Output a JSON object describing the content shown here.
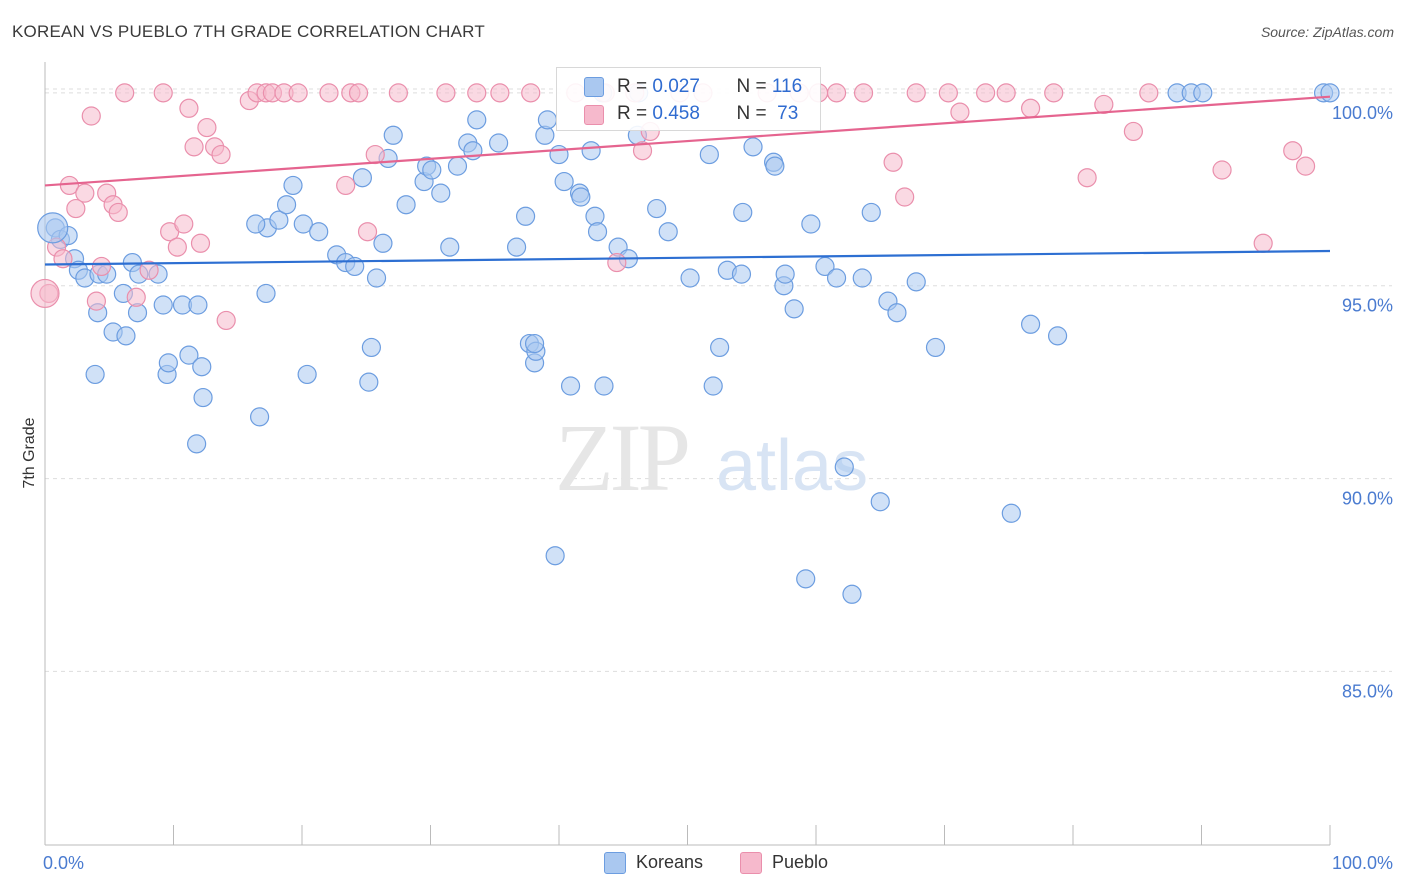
{
  "title": "KOREAN VS PUEBLO 7TH GRADE CORRELATION CHART",
  "source": "Source: ZipAtlas.com",
  "watermark": {
    "zip": "ZIP",
    "atlas": "atlas"
  },
  "colors": {
    "blue_fill": "#aac8f0",
    "blue_stroke": "#6c9de0",
    "blue_line": "#2d6fd2",
    "pink_fill": "#f6b9cc",
    "pink_stroke": "#ea8fac",
    "pink_line": "#e5648f",
    "grid": "#dddddd",
    "tick_label": "#4a7bd0"
  },
  "legend": {
    "rows": [
      {
        "r_label": "R = ",
        "r_value": "0.027",
        "n_label": "N = ",
        "n_value": "116",
        "series": "Koreans"
      },
      {
        "r_label": "R = ",
        "r_value": "0.458",
        "n_label": "N = ",
        "n_value": " 73",
        "series": "Pueblo"
      }
    ]
  },
  "chart_data": {
    "type": "scatter",
    "title": "KOREAN VS PUEBLO 7TH GRADE CORRELATION CHART",
    "xlabel": "",
    "ylabel": "7th Grade",
    "xlim": [
      0,
      100
    ],
    "ylim": [
      80.5,
      100.8
    ],
    "x_tick_labels": [
      "0.0%",
      "100.0%"
    ],
    "y_ticks": [
      85,
      90,
      95,
      100
    ],
    "y_tick_labels": [
      "85.0%",
      "90.0%",
      "95.0%",
      "100.0%"
    ],
    "grid": true,
    "legend_position": "top-center",
    "series": [
      {
        "name": "Koreans",
        "color": "#6c9de0",
        "trend": {
          "x": [
            0,
            100
          ],
          "y": [
            95.55,
            95.9
          ]
        },
        "points": [
          [
            0.8,
            96.5
          ],
          [
            1.2,
            96.2
          ],
          [
            1.8,
            96.3
          ],
          [
            2.3,
            95.7
          ],
          [
            2.6,
            95.4
          ],
          [
            3.1,
            95.2
          ],
          [
            4.2,
            95.3
          ],
          [
            4.8,
            95.3
          ],
          [
            6.1,
            94.8
          ],
          [
            6.8,
            95.6
          ],
          [
            7.3,
            95.3
          ],
          [
            8.8,
            95.3
          ],
          [
            9.2,
            94.5
          ],
          [
            10.7,
            94.5
          ],
          [
            11.9,
            94.5
          ],
          [
            4.1,
            94.3
          ],
          [
            7.2,
            94.3
          ],
          [
            5.3,
            93.8
          ],
          [
            6.3,
            93.7
          ],
          [
            3.9,
            92.7
          ],
          [
            9.5,
            92.7
          ],
          [
            9.6,
            93.0
          ],
          [
            11.2,
            93.2
          ],
          [
            12.2,
            92.9
          ],
          [
            12.3,
            92.1
          ],
          [
            11.8,
            90.9
          ],
          [
            16.7,
            91.6
          ],
          [
            17.2,
            94.8
          ],
          [
            17.3,
            96.5
          ],
          [
            18.2,
            96.7
          ],
          [
            16.4,
            96.6
          ],
          [
            18.8,
            97.1
          ],
          [
            19.3,
            97.6
          ],
          [
            20.1,
            96.6
          ],
          [
            21.3,
            96.4
          ],
          [
            22.7,
            95.8
          ],
          [
            23.4,
            95.6
          ],
          [
            24.1,
            95.5
          ],
          [
            25.8,
            95.2
          ],
          [
            26.3,
            96.1
          ],
          [
            24.7,
            97.8
          ],
          [
            26.7,
            98.3
          ],
          [
            27.1,
            98.9
          ],
          [
            28.1,
            97.1
          ],
          [
            29.5,
            97.7
          ],
          [
            29.7,
            98.1
          ],
          [
            30.1,
            98.0
          ],
          [
            30.8,
            97.4
          ],
          [
            31.5,
            96.0
          ],
          [
            32.1,
            98.1
          ],
          [
            32.9,
            98.7
          ],
          [
            33.6,
            99.3
          ],
          [
            33.3,
            98.5
          ],
          [
            35.3,
            98.7
          ],
          [
            36.7,
            96.0
          ],
          [
            37.4,
            96.8
          ],
          [
            37.7,
            93.5
          ],
          [
            38.1,
            93.0
          ],
          [
            38.2,
            93.3
          ],
          [
            38.9,
            98.9
          ],
          [
            39.1,
            99.3
          ],
          [
            40.0,
            98.4
          ],
          [
            40.4,
            97.7
          ],
          [
            41.6,
            97.4
          ],
          [
            41.7,
            97.3
          ],
          [
            42.5,
            98.5
          ],
          [
            42.8,
            96.8
          ],
          [
            43.0,
            96.4
          ],
          [
            44.6,
            96.0
          ],
          [
            45.4,
            95.7
          ],
          [
            46.1,
            98.9
          ],
          [
            46.2,
            100.0
          ],
          [
            47.6,
            97.0
          ],
          [
            48.5,
            96.4
          ],
          [
            50.2,
            95.2
          ],
          [
            51.7,
            98.4
          ],
          [
            53.1,
            95.4
          ],
          [
            54.3,
            96.9
          ],
          [
            54.2,
            95.3
          ],
          [
            55.1,
            98.6
          ],
          [
            56.7,
            98.2
          ],
          [
            56.8,
            98.1
          ],
          [
            57.5,
            95.0
          ],
          [
            57.6,
            95.3
          ],
          [
            58.3,
            94.4
          ],
          [
            59.6,
            96.6
          ],
          [
            60.7,
            95.5
          ],
          [
            61.6,
            95.2
          ],
          [
            63.6,
            95.2
          ],
          [
            64.3,
            96.9
          ],
          [
            65.6,
            94.6
          ],
          [
            66.3,
            94.3
          ],
          [
            67.8,
            95.1
          ],
          [
            52.5,
            93.4
          ],
          [
            52.0,
            92.4
          ],
          [
            43.5,
            92.4
          ],
          [
            40.9,
            92.4
          ],
          [
            38.1,
            93.5
          ],
          [
            25.4,
            93.4
          ],
          [
            25.2,
            92.5
          ],
          [
            20.4,
            92.7
          ],
          [
            69.3,
            93.4
          ],
          [
            76.7,
            94.0
          ],
          [
            78.8,
            93.7
          ],
          [
            62.2,
            90.3
          ],
          [
            65.0,
            89.4
          ],
          [
            75.2,
            89.1
          ],
          [
            39.7,
            88.0
          ],
          [
            59.2,
            87.4
          ],
          [
            62.8,
            87.0
          ],
          [
            99.5,
            100.0
          ],
          [
            100.0,
            100.0
          ],
          [
            88.1,
            100.0
          ],
          [
            89.2,
            100.0
          ],
          [
            90.1,
            100.0
          ],
          [
            43.4,
            100.0
          ]
        ]
      },
      {
        "name": "Pueblo",
        "color": "#ea8fac",
        "trend": {
          "x": [
            0,
            100
          ],
          "y": [
            97.6,
            99.9
          ]
        },
        "points": [
          [
            0.3,
            94.8
          ],
          [
            0.9,
            96.0
          ],
          [
            1.4,
            95.7
          ],
          [
            1.9,
            97.6
          ],
          [
            2.4,
            97.0
          ],
          [
            3.1,
            97.4
          ],
          [
            3.6,
            99.4
          ],
          [
            4.0,
            94.6
          ],
          [
            4.4,
            95.5
          ],
          [
            4.8,
            97.4
          ],
          [
            5.3,
            97.1
          ],
          [
            5.7,
            96.9
          ],
          [
            6.2,
            100.0
          ],
          [
            7.1,
            94.7
          ],
          [
            8.1,
            95.4
          ],
          [
            9.2,
            100.0
          ],
          [
            9.7,
            96.4
          ],
          [
            10.3,
            96.0
          ],
          [
            10.8,
            96.6
          ],
          [
            11.2,
            99.6
          ],
          [
            11.6,
            98.6
          ],
          [
            12.1,
            96.1
          ],
          [
            12.6,
            99.1
          ],
          [
            13.2,
            98.6
          ],
          [
            13.7,
            98.4
          ],
          [
            14.1,
            94.1
          ],
          [
            15.9,
            99.8
          ],
          [
            16.5,
            100.0
          ],
          [
            17.2,
            100.0
          ],
          [
            17.7,
            100.0
          ],
          [
            18.6,
            100.0
          ],
          [
            19.7,
            100.0
          ],
          [
            22.1,
            100.0
          ],
          [
            23.4,
            97.6
          ],
          [
            23.8,
            100.0
          ],
          [
            24.4,
            100.0
          ],
          [
            25.1,
            96.4
          ],
          [
            25.7,
            98.4
          ],
          [
            27.5,
            100.0
          ],
          [
            31.2,
            100.0
          ],
          [
            33.6,
            100.0
          ],
          [
            35.4,
            100.0
          ],
          [
            37.8,
            100.0
          ],
          [
            41.3,
            100.0
          ],
          [
            43.6,
            100.0
          ],
          [
            44.5,
            95.6
          ],
          [
            45.9,
            100.0
          ],
          [
            46.5,
            98.5
          ],
          [
            47.1,
            99.0
          ],
          [
            49.4,
            100.0
          ],
          [
            51.2,
            100.0
          ],
          [
            56.2,
            100.0
          ],
          [
            58.7,
            100.0
          ],
          [
            60.2,
            100.0
          ],
          [
            61.6,
            100.0
          ],
          [
            63.7,
            100.0
          ],
          [
            66.0,
            98.2
          ],
          [
            66.9,
            97.3
          ],
          [
            67.8,
            100.0
          ],
          [
            70.3,
            100.0
          ],
          [
            71.2,
            99.5
          ],
          [
            73.2,
            100.0
          ],
          [
            74.8,
            100.0
          ],
          [
            76.7,
            99.6
          ],
          [
            78.5,
            100.0
          ],
          [
            81.1,
            97.8
          ],
          [
            82.4,
            99.7
          ],
          [
            84.7,
            99.0
          ],
          [
            85.9,
            100.0
          ],
          [
            91.6,
            98.0
          ],
          [
            94.8,
            96.1
          ],
          [
            97.1,
            98.5
          ],
          [
            98.1,
            98.1
          ]
        ]
      }
    ]
  }
}
